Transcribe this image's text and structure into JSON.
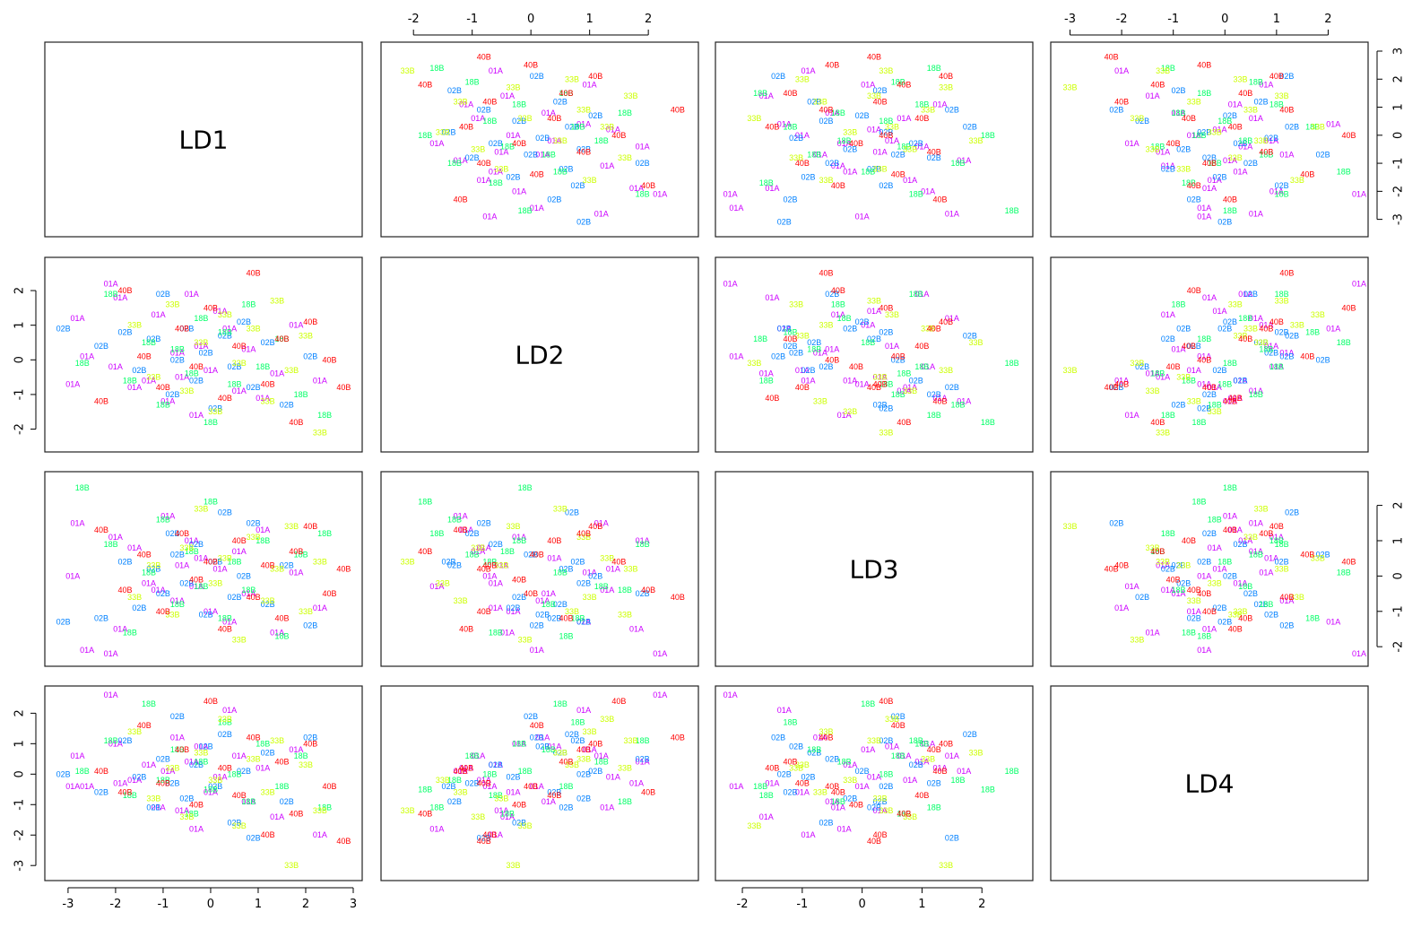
{
  "chart_data": {
    "type": "scatter",
    "variables": [
      "LD1",
      "LD2",
      "LD3",
      "LD4"
    ],
    "groups": [
      {
        "name": "01A",
        "color": "#cc00ff"
      },
      {
        "name": "02B",
        "color": "#0080ff"
      },
      {
        "name": "18B",
        "color": "#00ff66"
      },
      {
        "name": "33B",
        "color": "#ccff00"
      },
      {
        "name": "40B",
        "color": "#ff0000"
      }
    ],
    "ranges": {
      "LD1": [
        -3.3,
        3.0
      ],
      "LD2": [
        -2.4,
        2.7
      ],
      "LD3": [
        -2.3,
        2.7
      ],
      "LD4": [
        -3.2,
        2.6
      ]
    },
    "axis_ticks": {
      "LD1": [
        "-3",
        "-2",
        "-1",
        "0",
        "1",
        "2",
        "3"
      ],
      "LD2": [
        "-2",
        "-1",
        "0",
        "1",
        "2"
      ],
      "LD3": [
        "-2",
        "-1",
        "0",
        "1",
        "2"
      ],
      "LD4": [
        "-3",
        "-2",
        "-1",
        "0",
        "1",
        "2",
        "3"
      ]
    },
    "observations": [
      {
        "g": "01A",
        "LD1": -2.9,
        "LD2": -0.7,
        "LD3": 0.0,
        "LD4": -0.4
      },
      {
        "g": "01A",
        "LD1": -2.8,
        "LD2": 1.2,
        "LD3": 1.5,
        "LD4": 0.6
      },
      {
        "g": "01A",
        "LD1": -2.6,
        "LD2": 0.1,
        "LD3": -2.1,
        "LD4": -0.4
      },
      {
        "g": "01A",
        "LD1": -2.1,
        "LD2": 2.2,
        "LD3": -2.2,
        "LD4": 2.6
      },
      {
        "g": "01A",
        "LD1": -2.0,
        "LD2": -0.2,
        "LD3": 1.1,
        "LD4": 1.0
      },
      {
        "g": "01A",
        "LD1": -1.9,
        "LD2": 1.8,
        "LD3": -1.5,
        "LD4": -0.3
      },
      {
        "g": "01A",
        "LD1": -1.6,
        "LD2": -0.8,
        "LD3": 0.8,
        "LD4": -0.2
      },
      {
        "g": "01A",
        "LD1": -1.3,
        "LD2": -0.6,
        "LD3": -0.2,
        "LD4": 0.3
      },
      {
        "g": "01A",
        "LD1": -1.1,
        "LD2": 1.3,
        "LD3": -0.4,
        "LD4": -1.1
      },
      {
        "g": "01A",
        "LD1": -0.9,
        "LD2": -1.2,
        "LD3": 1.7,
        "LD4": 0.1
      },
      {
        "g": "01A",
        "LD1": -0.7,
        "LD2": 0.2,
        "LD3": -0.7,
        "LD4": 1.2
      },
      {
        "g": "01A",
        "LD1": -0.6,
        "LD2": -0.5,
        "LD3": 0.3,
        "LD4": -1.2
      },
      {
        "g": "01A",
        "LD1": -0.4,
        "LD2": 1.9,
        "LD3": 1.0,
        "LD4": 0.4
      },
      {
        "g": "01A",
        "LD1": -0.3,
        "LD2": -1.6,
        "LD3": -0.3,
        "LD4": -1.8
      },
      {
        "g": "01A",
        "LD1": -0.2,
        "LD2": 0.4,
        "LD3": 0.5,
        "LD4": 0.9
      },
      {
        "g": "01A",
        "LD1": 0.0,
        "LD2": -0.3,
        "LD3": -1.0,
        "LD4": -0.6
      },
      {
        "g": "01A",
        "LD1": 0.2,
        "LD2": 1.4,
        "LD3": 0.2,
        "LD4": -0.1
      },
      {
        "g": "01A",
        "LD1": 0.4,
        "LD2": 0.9,
        "LD3": -1.3,
        "LD4": 2.1
      },
      {
        "g": "01A",
        "LD1": 0.6,
        "LD2": -0.9,
        "LD3": 0.7,
        "LD4": 0.6
      },
      {
        "g": "01A",
        "LD1": 0.8,
        "LD2": 0.3,
        "LD3": -0.5,
        "LD4": -0.9
      },
      {
        "g": "01A",
        "LD1": 1.1,
        "LD2": -1.1,
        "LD3": 1.3,
        "LD4": 0.2
      },
      {
        "g": "01A",
        "LD1": 1.4,
        "LD2": -0.4,
        "LD3": -1.6,
        "LD4": -1.4
      },
      {
        "g": "01A",
        "LD1": 1.8,
        "LD2": 1.0,
        "LD3": 0.1,
        "LD4": 0.8
      },
      {
        "g": "01A",
        "LD1": 2.3,
        "LD2": -0.6,
        "LD3": -0.9,
        "LD4": -2.0
      },
      {
        "g": "02B",
        "LD1": -3.1,
        "LD2": 0.9,
        "LD3": -1.3,
        "LD4": 0.0
      },
      {
        "g": "02B",
        "LD1": -2.3,
        "LD2": 0.4,
        "LD3": -1.2,
        "LD4": -0.6
      },
      {
        "g": "02B",
        "LD1": -1.8,
        "LD2": 0.8,
        "LD3": 0.4,
        "LD4": 1.1
      },
      {
        "g": "02B",
        "LD1": -1.5,
        "LD2": -0.3,
        "LD3": -0.9,
        "LD4": -0.1
      },
      {
        "g": "02B",
        "LD1": -1.2,
        "LD2": 0.6,
        "LD3": 0.2,
        "LD4": -1.1
      },
      {
        "g": "02B",
        "LD1": -1.0,
        "LD2": 1.9,
        "LD3": -0.5,
        "LD4": 0.5
      },
      {
        "g": "02B",
        "LD1": -0.8,
        "LD2": -1.0,
        "LD3": 1.2,
        "LD4": -0.3
      },
      {
        "g": "02B",
        "LD1": -0.7,
        "LD2": 0.0,
        "LD3": 0.6,
        "LD4": 1.9
      },
      {
        "g": "02B",
        "LD1": -0.5,
        "LD2": 0.9,
        "LD3": -0.2,
        "LD4": -0.8
      },
      {
        "g": "02B",
        "LD1": -0.3,
        "LD2": -0.6,
        "LD3": 0.9,
        "LD4": 0.3
      },
      {
        "g": "02B",
        "LD1": -0.1,
        "LD2": 0.2,
        "LD3": -1.1,
        "LD4": 0.9
      },
      {
        "g": "02B",
        "LD1": 0.1,
        "LD2": -1.4,
        "LD3": 0.4,
        "LD4": -0.4
      },
      {
        "g": "02B",
        "LD1": 0.3,
        "LD2": 0.7,
        "LD3": 1.8,
        "LD4": 1.3
      },
      {
        "g": "02B",
        "LD1": 0.5,
        "LD2": -0.2,
        "LD3": -0.6,
        "LD4": -1.6
      },
      {
        "g": "02B",
        "LD1": 0.7,
        "LD2": 1.1,
        "LD3": 0.0,
        "LD4": 0.1
      },
      {
        "g": "02B",
        "LD1": 0.9,
        "LD2": -0.8,
        "LD3": 1.5,
        "LD4": -2.1
      },
      {
        "g": "02B",
        "LD1": 1.2,
        "LD2": 0.5,
        "LD3": -0.8,
        "LD4": 0.7
      },
      {
        "g": "02B",
        "LD1": 1.6,
        "LD2": -1.3,
        "LD3": 0.3,
        "LD4": -0.9
      },
      {
        "g": "02B",
        "LD1": 2.1,
        "LD2": 0.1,
        "LD3": -1.4,
        "LD4": 1.2
      },
      {
        "g": "18B",
        "LD1": -2.7,
        "LD2": -0.1,
        "LD3": 2.5,
        "LD4": 0.1
      },
      {
        "g": "18B",
        "LD1": -2.1,
        "LD2": 1.9,
        "LD3": 0.9,
        "LD4": 1.1
      },
      {
        "g": "18B",
        "LD1": -1.7,
        "LD2": -0.6,
        "LD3": -1.6,
        "LD4": -0.7
      },
      {
        "g": "18B",
        "LD1": -1.3,
        "LD2": 0.5,
        "LD3": 0.1,
        "LD4": 2.3
      },
      {
        "g": "18B",
        "LD1": -1.0,
        "LD2": -1.3,
        "LD3": 1.6,
        "LD4": -0.2
      },
      {
        "g": "18B",
        "LD1": -0.7,
        "LD2": 0.3,
        "LD3": -0.8,
        "LD4": 0.8
      },
      {
        "g": "18B",
        "LD1": -0.4,
        "LD2": -0.4,
        "LD3": 0.7,
        "LD4": -1.3
      },
      {
        "g": "18B",
        "LD1": -0.2,
        "LD2": 1.2,
        "LD3": -0.3,
        "LD4": 0.4
      },
      {
        "g": "18B",
        "LD1": 0.0,
        "LD2": -1.8,
        "LD3": 2.1,
        "LD4": -0.5
      },
      {
        "g": "18B",
        "LD1": 0.3,
        "LD2": 0.8,
        "LD3": -1.2,
        "LD4": 1.7
      },
      {
        "g": "18B",
        "LD1": 0.5,
        "LD2": -0.7,
        "LD3": 0.4,
        "LD4": 0.0
      },
      {
        "g": "18B",
        "LD1": 0.8,
        "LD2": 1.6,
        "LD3": -0.4,
        "LD4": -0.9
      },
      {
        "g": "18B",
        "LD1": 1.1,
        "LD2": -0.2,
        "LD3": 1.0,
        "LD4": 1.0
      },
      {
        "g": "18B",
        "LD1": 1.5,
        "LD2": 0.6,
        "LD3": -1.7,
        "LD4": -0.4
      },
      {
        "g": "18B",
        "LD1": 1.9,
        "LD2": -1.0,
        "LD3": 0.6,
        "LD4": 0.6
      },
      {
        "g": "18B",
        "LD1": 2.4,
        "LD2": -1.6,
        "LD3": 1.2,
        "LD4": -1.1
      },
      {
        "g": "33B",
        "LD1": -1.6,
        "LD2": 1.0,
        "LD3": -0.6,
        "LD4": 1.4
      },
      {
        "g": "33B",
        "LD1": -1.2,
        "LD2": -0.5,
        "LD3": 0.3,
        "LD4": -0.8
      },
      {
        "g": "33B",
        "LD1": -0.8,
        "LD2": 1.6,
        "LD3": -1.1,
        "LD4": 0.2
      },
      {
        "g": "33B",
        "LD1": -0.5,
        "LD2": -0.9,
        "LD3": 0.8,
        "LD4": -1.4
      },
      {
        "g": "33B",
        "LD1": -0.2,
        "LD2": 0.5,
        "LD3": 1.9,
        "LD4": 0.7
      },
      {
        "g": "33B",
        "LD1": 0.1,
        "LD2": -1.5,
        "LD3": -0.2,
        "LD4": -0.2
      },
      {
        "g": "33B",
        "LD1": 0.3,
        "LD2": 1.3,
        "LD3": 0.5,
        "LD4": 1.8
      },
      {
        "g": "33B",
        "LD1": 0.6,
        "LD2": -0.1,
        "LD3": -1.8,
        "LD4": -1.7
      },
      {
        "g": "33B",
        "LD1": 0.9,
        "LD2": 0.9,
        "LD3": 1.1,
        "LD4": 0.5
      },
      {
        "g": "33B",
        "LD1": 1.2,
        "LD2": -1.2,
        "LD3": -0.7,
        "LD4": -0.6
      },
      {
        "g": "33B",
        "LD1": 1.4,
        "LD2": 1.7,
        "LD3": 0.2,
        "LD4": 1.1
      },
      {
        "g": "33B",
        "LD1": 1.7,
        "LD2": -0.3,
        "LD3": 1.4,
        "LD4": -3.0
      },
      {
        "g": "33B",
        "LD1": 2.0,
        "LD2": 0.7,
        "LD3": -1.0,
        "LD4": 0.3
      },
      {
        "g": "33B",
        "LD1": 2.3,
        "LD2": -2.1,
        "LD3": 0.4,
        "LD4": -1.2
      },
      {
        "g": "40B",
        "LD1": -2.3,
        "LD2": -1.2,
        "LD3": 1.3,
        "LD4": 0.1
      },
      {
        "g": "40B",
        "LD1": -1.8,
        "LD2": 2.0,
        "LD3": -0.4,
        "LD4": -0.6
      },
      {
        "g": "40B",
        "LD1": -1.4,
        "LD2": 0.1,
        "LD3": 0.6,
        "LD4": 1.6
      },
      {
        "g": "40B",
        "LD1": -1.0,
        "LD2": -0.8,
        "LD3": -1.0,
        "LD4": -0.3
      },
      {
        "g": "40B",
        "LD1": -0.6,
        "LD2": 0.9,
        "LD3": 1.2,
        "LD4": 0.8
      },
      {
        "g": "40B",
        "LD1": -0.3,
        "LD2": -0.2,
        "LD3": -0.1,
        "LD4": -1.0
      },
      {
        "g": "40B",
        "LD1": 0.0,
        "LD2": 1.5,
        "LD3": 0.4,
        "LD4": 2.4
      },
      {
        "g": "40B",
        "LD1": 0.3,
        "LD2": -1.1,
        "LD3": -1.5,
        "LD4": 0.2
      },
      {
        "g": "40B",
        "LD1": 0.6,
        "LD2": 0.4,
        "LD3": 1.0,
        "LD4": -0.7
      },
      {
        "g": "40B",
        "LD1": 0.9,
        "LD2": 2.5,
        "LD3": -0.6,
        "LD4": 1.2
      },
      {
        "g": "40B",
        "LD1": 1.2,
        "LD2": -0.7,
        "LD3": 0.3,
        "LD4": -2.0
      },
      {
        "g": "40B",
        "LD1": 1.5,
        "LD2": 0.6,
        "LD3": -1.2,
        "LD4": 0.4
      },
      {
        "g": "40B",
        "LD1": 1.8,
        "LD2": -1.8,
        "LD3": 0.7,
        "LD4": -1.3
      },
      {
        "g": "40B",
        "LD1": 2.1,
        "LD2": 1.1,
        "LD3": 1.4,
        "LD4": 1.0
      },
      {
        "g": "40B",
        "LD1": 2.5,
        "LD2": 0.0,
        "LD3": -0.5,
        "LD4": -0.4
      },
      {
        "g": "40B",
        "LD1": 2.8,
        "LD2": -0.8,
        "LD3": 0.2,
        "LD4": -2.2
      }
    ]
  }
}
